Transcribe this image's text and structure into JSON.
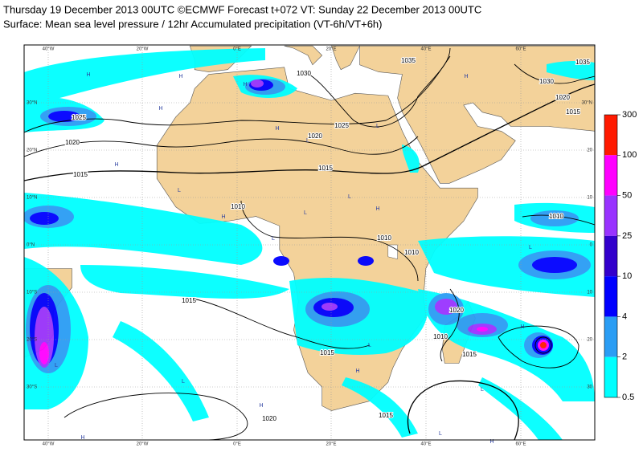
{
  "header": {
    "line1": "Thursday 19 December 2013 00UTC ©ECMWF Forecast t+072 VT: Sunday 22 December 2013 00UTC",
    "line2": "Surface: Mean sea level pressure / 12hr Accumulated precipitation (VT-6h/VT+6h)"
  },
  "map": {
    "lon_labels_top": [
      "40°W",
      "20°W",
      "0°E",
      "20°E",
      "40°E",
      "60°E"
    ],
    "lon_labels_bottom": [
      "40°W",
      "20°W",
      "0°E",
      "20°E",
      "40°E",
      "60°E"
    ],
    "lat_labels_left": [
      "30°N",
      "20°N",
      "10°N",
      "0°N",
      "10°S",
      "20°S",
      "30°S"
    ],
    "lat_labels_right": [
      "30°N",
      "20",
      "10",
      "0",
      "10",
      "20",
      "30"
    ],
    "isobar_labels": [
      "1035",
      "1030",
      "1025",
      "1020",
      "1015",
      "1025",
      "1020",
      "1015",
      "1010",
      "1010",
      "1010",
      "1030",
      "1020",
      "1015",
      "1035",
      "1010",
      "1020",
      "1010",
      "1015",
      "1015",
      "1015",
      "1020",
      "1015"
    ],
    "pressure_centers": [
      "H",
      "H",
      "H",
      "H",
      "H",
      "L",
      "L",
      "H",
      "H",
      "L",
      "L",
      "L",
      "H",
      "L",
      "L",
      "H",
      "L",
      "H",
      "L",
      "H",
      "H",
      "L",
      "H",
      "L",
      "L",
      "H"
    ]
  },
  "colorbar": {
    "labels": [
      "300",
      "100",
      "50",
      "25",
      "10",
      "4",
      "2",
      "0.5"
    ],
    "colors": [
      "#ff1a00",
      "#ff00ff",
      "#9933ff",
      "#3300cc",
      "#0000ff",
      "#2a9df4",
      "#00ffff"
    ]
  }
}
